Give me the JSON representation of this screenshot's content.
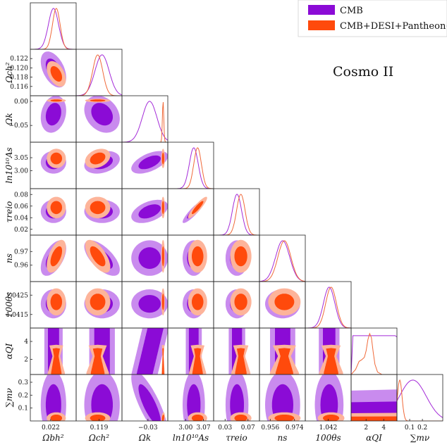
{
  "figure": {
    "annotation": "Cosmo II"
  },
  "colors": {
    "cmb_dark": "#8B0BD6",
    "cmb_light": "#C98BEE",
    "joint_dark": "#FF4A0C",
    "joint_light": "#FDB49A",
    "cmb_line": "#A42BD8",
    "joint_line": "#F06A3A"
  },
  "chart_data": {
    "type": "triangle-corner",
    "legend": {
      "placement": "top-right",
      "entries": [
        "CMB",
        "CMB+DESI+Pantheon+"
      ]
    },
    "parameters": [
      {
        "name": "omega_b",
        "label": "Ωbh²",
        "range": [
          0.0212,
          0.023
        ],
        "ticks": [
          {
            "v": 0.022,
            "t": "0.022"
          }
        ]
      },
      {
        "name": "omega_c",
        "label": "Ωch²",
        "range": [
          0.114,
          0.124
        ],
        "ticks": [
          {
            "v": 0.116,
            "t": "0.116"
          },
          {
            "v": 0.118,
            "t": "0.118"
          },
          {
            "v": 0.119,
            "t": "0.119"
          },
          {
            "v": 0.12,
            "t": "0.120"
          },
          {
            "v": 0.122,
            "t": "0.122"
          }
        ]
      },
      {
        "name": "omega_k",
        "label": "Ωk",
        "range": [
          -0.085,
          0.012
        ],
        "ticks": [
          {
            "v": -0.05,
            "t": "−0.05"
          },
          {
            "v": -0.03,
            "t": "−0.03"
          },
          {
            "v": 0.0,
            "t": "0.00"
          }
        ]
      },
      {
        "name": "ln10As",
        "label": "ln10¹⁰As",
        "range": [
          2.93,
          3.11
        ],
        "ticks": [
          {
            "v": 3.0,
            "t": "3.00"
          },
          {
            "v": 3.05,
            "t": "3.05"
          },
          {
            "v": 3.07,
            "t": "3.07"
          }
        ]
      },
      {
        "name": "tau",
        "label": "τreio",
        "range": [
          0.01,
          0.09
        ],
        "ticks": [
          {
            "v": 0.02,
            "t": "0.02"
          },
          {
            "v": 0.03,
            "t": "0.03"
          },
          {
            "v": 0.04,
            "t": "0.04"
          },
          {
            "v": 0.06,
            "t": "0.06"
          },
          {
            "v": 0.07,
            "t": "0.07"
          },
          {
            "v": 0.08,
            "t": "0.08"
          }
        ]
      },
      {
        "name": "ns",
        "label": "ns",
        "range": [
          0.948,
          0.982
        ],
        "ticks": [
          {
            "v": 0.956,
            "t": "0.956"
          },
          {
            "v": 0.96,
            "t": "0.96"
          },
          {
            "v": 0.97,
            "t": "0.97"
          },
          {
            "v": 0.974,
            "t": "0.974"
          }
        ]
      },
      {
        "name": "theta",
        "label": "100θs",
        "range": [
          1.0408,
          1.0432
        ],
        "ticks": [
          {
            "v": 1.0415,
            "t": "1.0415"
          },
          {
            "v": 1.042,
            "t": "1.042"
          },
          {
            "v": 1.0425,
            "t": "1.0425"
          }
        ]
      },
      {
        "name": "alpha",
        "label": "αQI",
        "range": [
          0.3,
          5.5
        ],
        "ticks": [
          {
            "v": 2,
            "t": "2"
          },
          {
            "v": 4,
            "t": "4"
          }
        ]
      },
      {
        "name": "mnu",
        "label": "∑mν",
        "range": [
          0.0,
          0.36
        ],
        "ticks": [
          {
            "v": 0.1,
            "t": "0.1"
          },
          {
            "v": 0.2,
            "t": "0.2"
          },
          {
            "v": 0.3,
            "t": "0.3"
          }
        ]
      }
    ],
    "xtick_use": [
      [
        0.022
      ],
      [
        0.119
      ],
      [
        -0.03
      ],
      [
        3.0,
        3.07
      ],
      [
        0.03,
        0.07
      ],
      [
        0.956,
        0.974
      ],
      [
        1.042
      ],
      [
        2,
        4
      ],
      [
        0.1,
        0.2
      ]
    ],
    "ytick_use": [
      null,
      [
        0.116,
        0.118,
        0.12,
        0.122
      ],
      [
        -0.05,
        0.0
      ],
      [
        3.0,
        3.05
      ],
      [
        0.02,
        0.04,
        0.06,
        0.08
      ],
      [
        0.96,
        0.97
      ],
      [
        1.0415,
        1.0425
      ],
      [
        2,
        4
      ],
      [
        0.1,
        0.2,
        0.3
      ]
    ],
    "datasets": {
      "cmb": {
        "name": "CMB",
        "mean": [
          0.02211,
          0.11965,
          -0.0265,
          3.032,
          0.0508,
          0.9652,
          1.04205,
          2.75,
          0.125
        ],
        "sigma": [
          0.0002,
          0.00155,
          0.0155,
          0.0175,
          0.008,
          0.0052,
          0.0003,
          2.2,
          0.105
        ]
      },
      "joint": {
        "name": "CMB+DESI+Pantheon+",
        "mean": [
          0.02222,
          0.1187,
          0.002,
          3.047,
          0.0575,
          0.9665,
          1.04215,
          2.35,
          0.022
        ],
        "sigma": [
          0.00015,
          0.0011,
          0.0015,
          0.015,
          0.0074,
          0.0048,
          0.00028,
          0.55,
          0.018
        ]
      }
    },
    "correlations": {
      "cmb": [
        [
          "omega_b",
          "omega_c",
          -0.45
        ],
        [
          "omega_b",
          "ns",
          0.55
        ],
        [
          "omega_c",
          "ns",
          -0.65
        ],
        [
          "omega_c",
          "omega_k",
          -0.25
        ],
        [
          "omega_k",
          "ln10As",
          0.55
        ],
        [
          "omega_k",
          "tau",
          0.45
        ],
        [
          "omega_k",
          "mnu",
          -0.8
        ],
        [
          "ln10As",
          "tau",
          0.9
        ],
        [
          "omega_c",
          "ln10As",
          0.3
        ],
        [
          "omega_b",
          "omega_k",
          0.2
        ]
      ],
      "joint": [
        [
          "omega_b",
          "omega_c",
          -0.45
        ],
        [
          "omega_b",
          "ns",
          0.55
        ],
        [
          "omega_c",
          "ns",
          -0.65
        ],
        [
          "omega_c",
          "ln10As",
          0.3
        ],
        [
          "ln10As",
          "tau",
          0.9
        ],
        [
          "omega_k",
          "mnu",
          0.3
        ]
      ]
    },
    "alpha_marginal": {
      "cmb_line_level": 0.95,
      "joint_profile": [
        [
          0.3,
          0.0
        ],
        [
          0.8,
          0.12
        ],
        [
          1.2,
          0.32
        ],
        [
          1.5,
          0.36
        ],
        [
          1.8,
          0.42
        ],
        [
          2.0,
          0.58
        ],
        [
          2.2,
          0.85
        ],
        [
          2.4,
          1.0
        ],
        [
          2.6,
          0.9
        ],
        [
          2.8,
          0.55
        ],
        [
          3.0,
          0.25
        ],
        [
          3.3,
          0.06
        ],
        [
          3.8,
          0.0
        ],
        [
          5.5,
          0.0
        ]
      ]
    }
  }
}
